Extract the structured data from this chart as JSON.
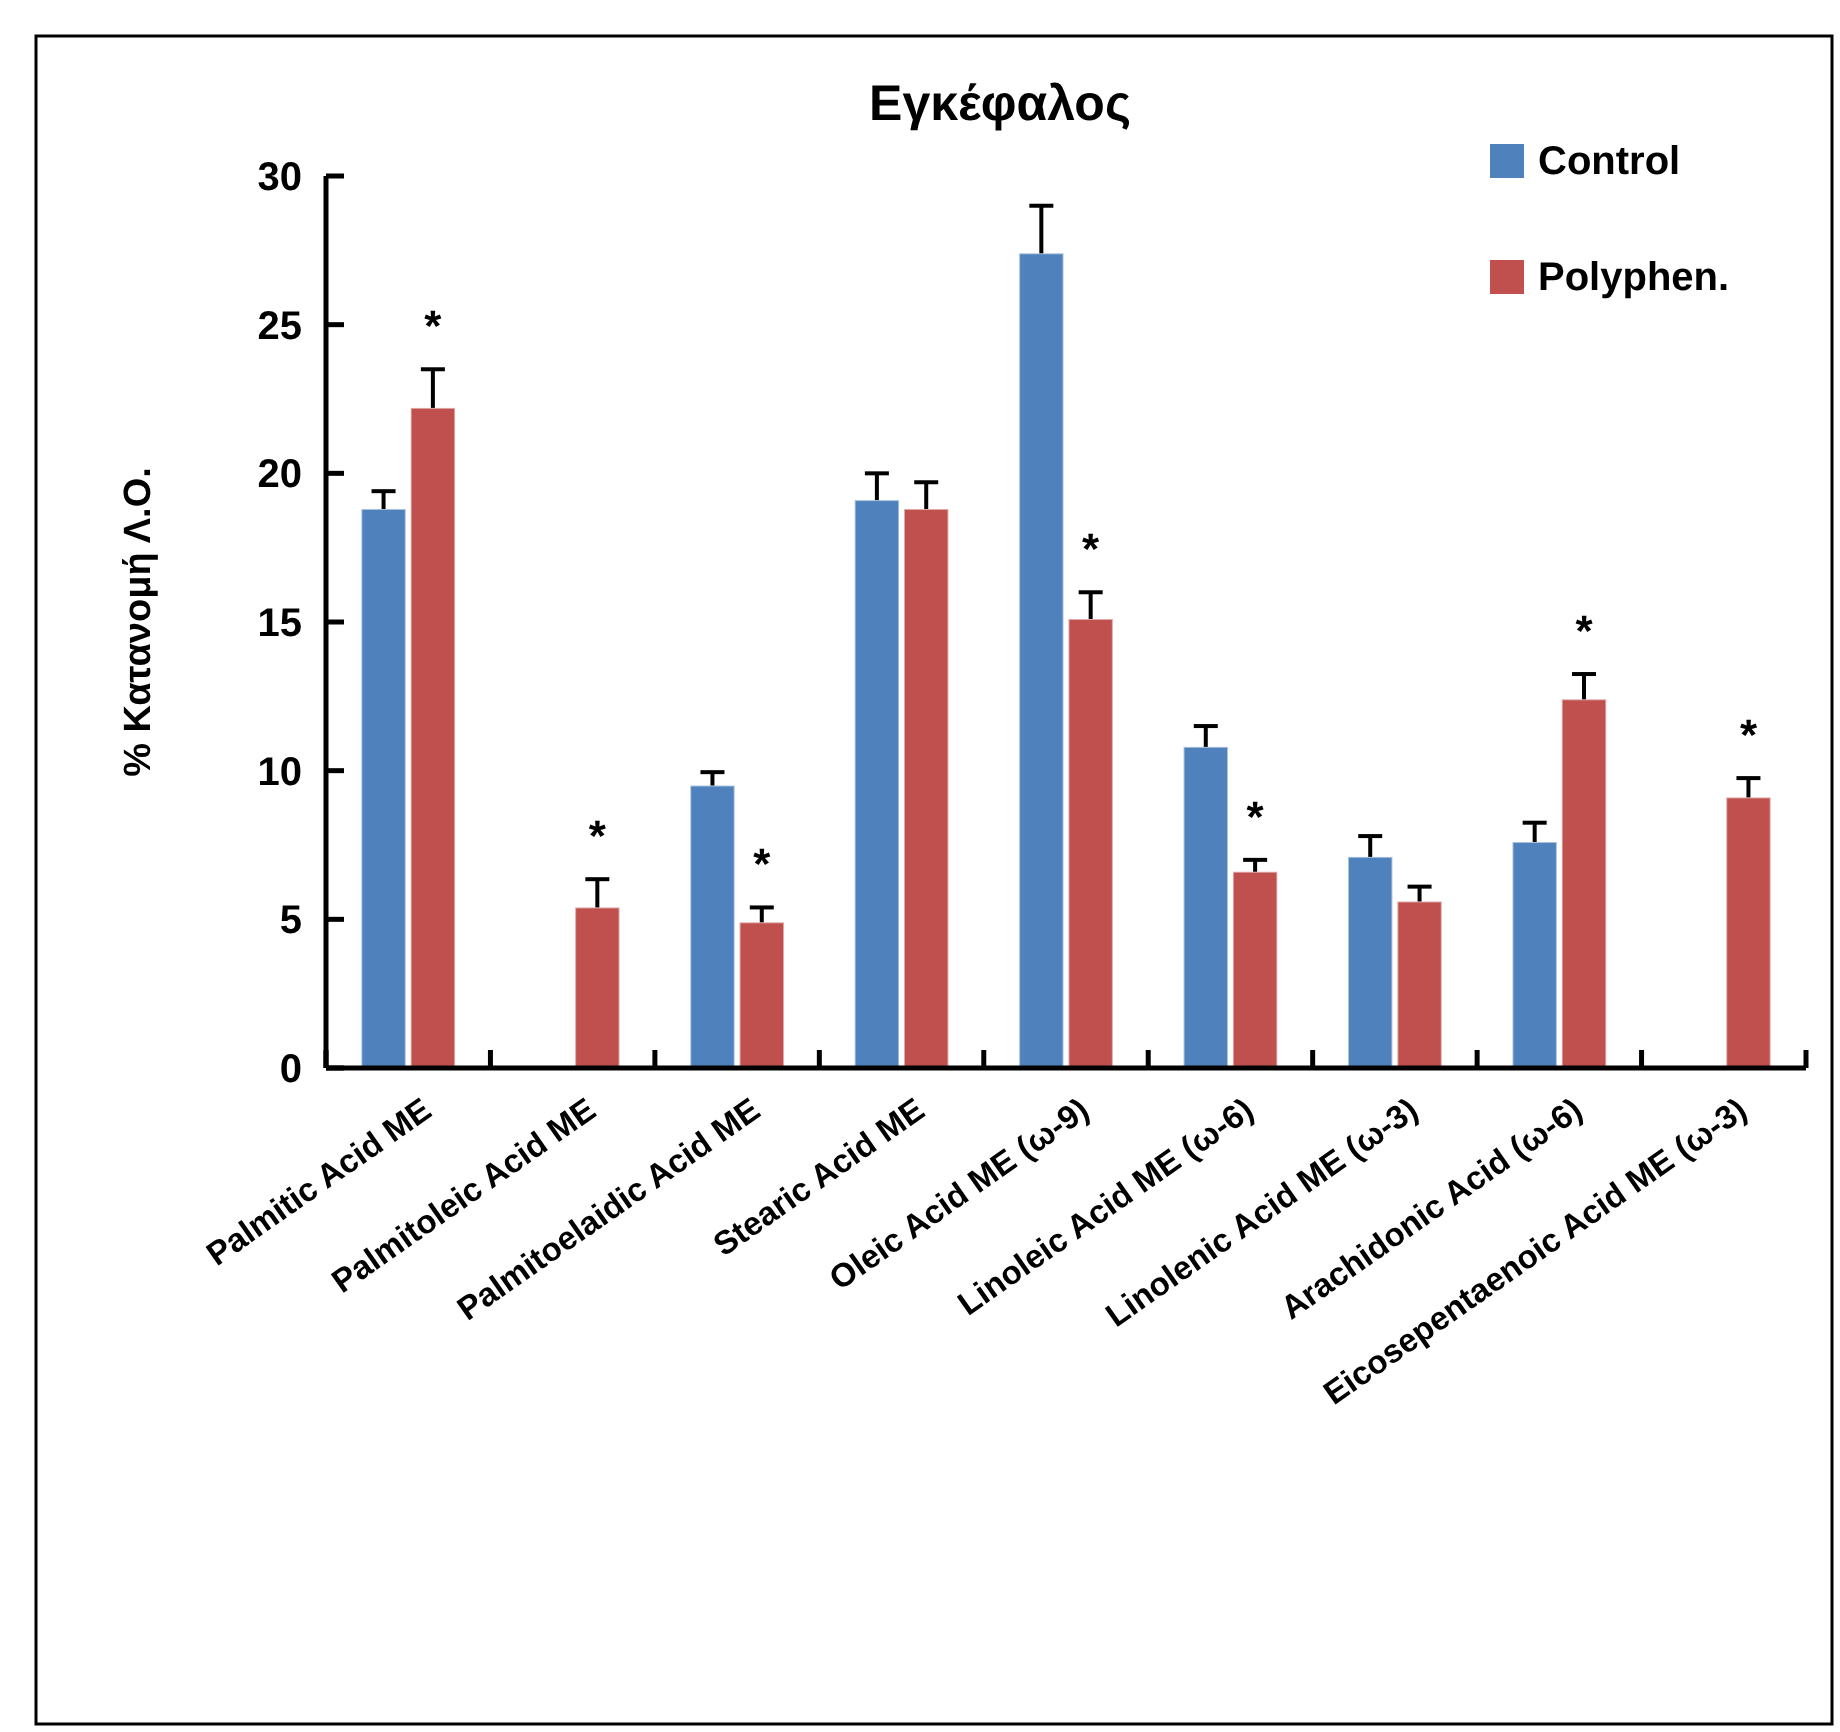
{
  "chart_data": {
    "type": "bar",
    "title": "Εγκέφαλος",
    "ylabel": "% Κατανομή Λ.Ο.",
    "categories": [
      "Palmitic Acid ME",
      "Palmitoleic Acid ME",
      "Palmitoelaidic Acid ME",
      "Stearic Acid ME",
      "Oleic Acid ME (ω-9)",
      "Linoleic Acid ME (ω-6)",
      "Linolenic Acid ME (ω-3)",
      "Arachidonic Acid (ω-6)",
      "Eicosepentaenoic Acid ME (ω-3)"
    ],
    "series": [
      {
        "name": "Control",
        "color": "#4f81bd",
        "values": [
          18.8,
          null,
          9.5,
          19.1,
          27.4,
          10.8,
          7.1,
          7.6,
          null
        ],
        "errors": [
          [
            18.8,
            19.4
          ],
          null,
          [
            9.5,
            9.95
          ],
          [
            19.1,
            20.0
          ],
          [
            27.4,
            29.0
          ],
          [
            10.8,
            11.5
          ],
          [
            7.1,
            7.8
          ],
          [
            7.6,
            8.25
          ],
          null
        ]
      },
      {
        "name": "Polyphen.",
        "color": "#c0504d",
        "values": [
          22.2,
          5.4,
          4.9,
          18.8,
          15.1,
          6.6,
          5.6,
          12.4,
          9.1
        ],
        "errors": [
          [
            22.2,
            23.5
          ],
          [
            5.4,
            6.35
          ],
          [
            4.9,
            5.4
          ],
          [
            18.8,
            19.7
          ],
          [
            15.1,
            16.0
          ],
          [
            6.6,
            7.0
          ],
          [
            5.6,
            6.1
          ],
          [
            12.4,
            13.25
          ],
          [
            9.1,
            9.75
          ]
        ]
      }
    ],
    "ylim": [
      0,
      30
    ],
    "yticks": [
      0,
      5,
      10,
      15,
      20,
      25,
      30
    ],
    "grid": false,
    "legend": "top right",
    "annotations": [
      {
        "text": "*",
        "x": "Palmitic Acid ME",
        "y": 22.2
      },
      {
        "text": "*",
        "x": "Palmitoleic Acid ME",
        "y": 5.4
      },
      {
        "text": "*",
        "x": "Palmitoelaidic Acid ME",
        "y": 4.9
      },
      {
        "text": "*",
        "x": "Oleic Acid ME (ω-9)",
        "y": 15.1
      },
      {
        "text": "*",
        "x": "Linoleic Acid ME (ω-6)",
        "y": 6.6
      },
      {
        "text": "*",
        "x": "Arachidonic Acid (ω-6)",
        "y": 12.4
      },
      {
        "text": "*",
        "x": "Eicosepentaenoic Acid ME (ω-3)",
        "y": 9.1
      }
    ]
  }
}
